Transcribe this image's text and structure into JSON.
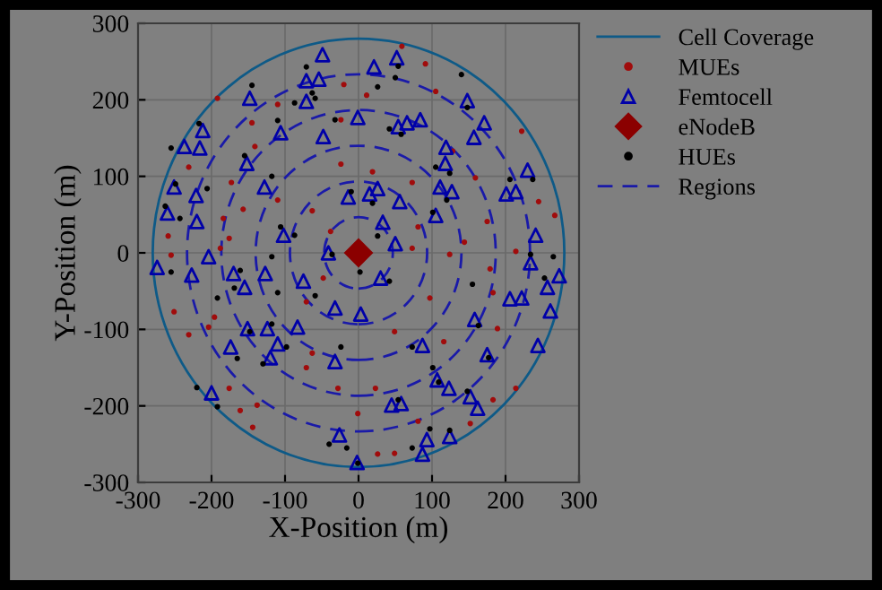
{
  "chart_data": {
    "type": "scatter",
    "xlabel": "X-Position (m)",
    "ylabel": "Y-Position (m)",
    "xlim": [
      -300,
      300
    ],
    "ylim": [
      -300,
      300
    ],
    "xticks": [
      -300,
      -200,
      -100,
      0,
      100,
      200,
      300
    ],
    "yticks": [
      -300,
      -200,
      -100,
      0,
      100,
      200,
      300
    ],
    "grid": true,
    "legend": "right",
    "series": [
      {
        "name": "Cell Coverage",
        "type": "line",
        "color": "#0e5a87",
        "line_style": "solid",
        "marker": "none"
      },
      {
        "name": "MUEs",
        "type": "scatter",
        "color": "#a00c0c",
        "marker": "circle",
        "x": [
          -192,
          -145,
          -110,
          -20,
          -24,
          -141,
          -173,
          -157,
          -110,
          -184,
          -176,
          -63,
          -38,
          -24,
          -231,
          -259,
          -188,
          -255,
          59,
          91,
          11,
          105,
          222,
          128,
          19,
          73,
          159,
          245,
          267,
          175,
          81,
          144,
          124,
          73,
          214,
          179,
          -251,
          -196,
          -204,
          -231,
          -176,
          -161,
          -138,
          -144,
          -71,
          -63,
          -71,
          -28,
          -48,
          97,
          183,
          49,
          116,
          189,
          214,
          183,
          23,
          81,
          26,
          49,
          152,
          -1
        ],
        "values": [
          202,
          170,
          194,
          220,
          174,
          139,
          92,
          57,
          69,
          45,
          19,
          55,
          28,
          116,
          112,
          22,
          6,
          -3,
          270,
          247,
          206,
          211,
          159,
          133,
          106,
          92,
          98,
          67,
          49,
          41,
          34,
          14,
          -2,
          6,
          2,
          -21,
          -77,
          -84,
          -97,
          -107,
          -177,
          -206,
          -199,
          -228,
          -64,
          -131,
          -150,
          -177,
          -33,
          -59,
          -52,
          -103,
          -116,
          -99,
          -177,
          -192,
          -177,
          -220,
          -263,
          -262,
          -223,
          -210
        ]
      },
      {
        "name": "Femtocell",
        "type": "scatter",
        "color": "#0000a8",
        "marker": "triangle",
        "x": [
          -49,
          -71,
          -54,
          -71,
          -148,
          -212,
          -237,
          -216,
          -106,
          -48,
          -1,
          -152,
          -128,
          -221,
          -251,
          -260,
          -220,
          -14,
          -102,
          -204,
          -41,
          -274,
          -227,
          -170,
          -127,
          -75,
          21,
          52,
          66,
          84,
          54,
          148,
          171,
          157,
          119,
          118,
          230,
          201,
          214,
          111,
          127,
          26,
          15,
          56,
          105,
          33,
          50,
          241,
          234,
          273,
          30,
          -155,
          -32,
          3,
          -151,
          -124,
          -83,
          -174,
          -110,
          -120,
          -32,
          -200,
          -26,
          -2,
          158,
          206,
          222,
          257,
          261,
          87,
          175,
          244,
          107,
          123,
          152,
          162,
          45,
          58,
          124,
          93,
          87
        ],
        "values": [
          259,
          225,
          227,
          198,
          202,
          160,
          139,
          137,
          157,
          152,
          177,
          117,
          86,
          75,
          86,
          52,
          41,
          73,
          23,
          -5,
          0,
          -19,
          -29,
          -27,
          -27,
          -37,
          243,
          255,
          170,
          174,
          165,
          199,
          170,
          151,
          138,
          117,
          108,
          77,
          80,
          86,
          80,
          84,
          77,
          67,
          49,
          40,
          12,
          23,
          -13,
          -30,
          -33,
          -45,
          -72,
          -80,
          -99,
          -99,
          -97,
          -123,
          -119,
          -137,
          -142,
          -183,
          -238,
          -274,
          -87,
          -60,
          -59,
          -45,
          -76,
          -121,
          -133,
          -121,
          -166,
          -177,
          -188,
          -203,
          -199,
          -197,
          -240,
          -244,
          -263
        ]
      },
      {
        "name": "eNodeB",
        "type": "scatter",
        "color": "#8b0000",
        "marker": "diamond",
        "x": [
          0
        ],
        "values": [
          0
        ]
      },
      {
        "name": "HUEs",
        "type": "scatter",
        "color": "#000000",
        "marker": "circle",
        "x": [
          -71,
          -63,
          -59,
          -145,
          -217,
          -255,
          -110,
          -155,
          -118,
          -249,
          -206,
          -263,
          -243,
          -106,
          -118,
          -255,
          -161,
          -87,
          -36,
          -10,
          -32,
          -87,
          54,
          50,
          26,
          140,
          148,
          58,
          42,
          105,
          124,
          120,
          206,
          237,
          19,
          101,
          26,
          234,
          265,
          2,
          42,
          -192,
          -169,
          -110,
          -148,
          -118,
          -98,
          -130,
          -165,
          -220,
          -192,
          -40,
          -16,
          -24,
          -59,
          155,
          253,
          163,
          73,
          177,
          101,
          109,
          148,
          54,
          97,
          124,
          73,
          -1
        ],
        "values": [
          243,
          209,
          202,
          219,
          169,
          137,
          173,
          127,
          100,
          90,
          84,
          61,
          45,
          34,
          -5,
          -25,
          -23,
          23,
          -2,
          80,
          174,
          196,
          244,
          229,
          217,
          233,
          190,
          155,
          162,
          112,
          104,
          69,
          96,
          96,
          65,
          53,
          22,
          -2,
          -5,
          -25,
          -37,
          -59,
          -46,
          -52,
          -103,
          -93,
          -123,
          -145,
          -138,
          -176,
          -201,
          -250,
          -255,
          -123,
          -56,
          -41,
          -33,
          -95,
          -123,
          -137,
          -150,
          -169,
          -181,
          -192,
          -230,
          -232,
          -255,
          -275
        ]
      },
      {
        "name": "Regions",
        "type": "line",
        "color": "#1a1aa8",
        "line_style": "dashed",
        "marker": "none"
      }
    ]
  }
}
